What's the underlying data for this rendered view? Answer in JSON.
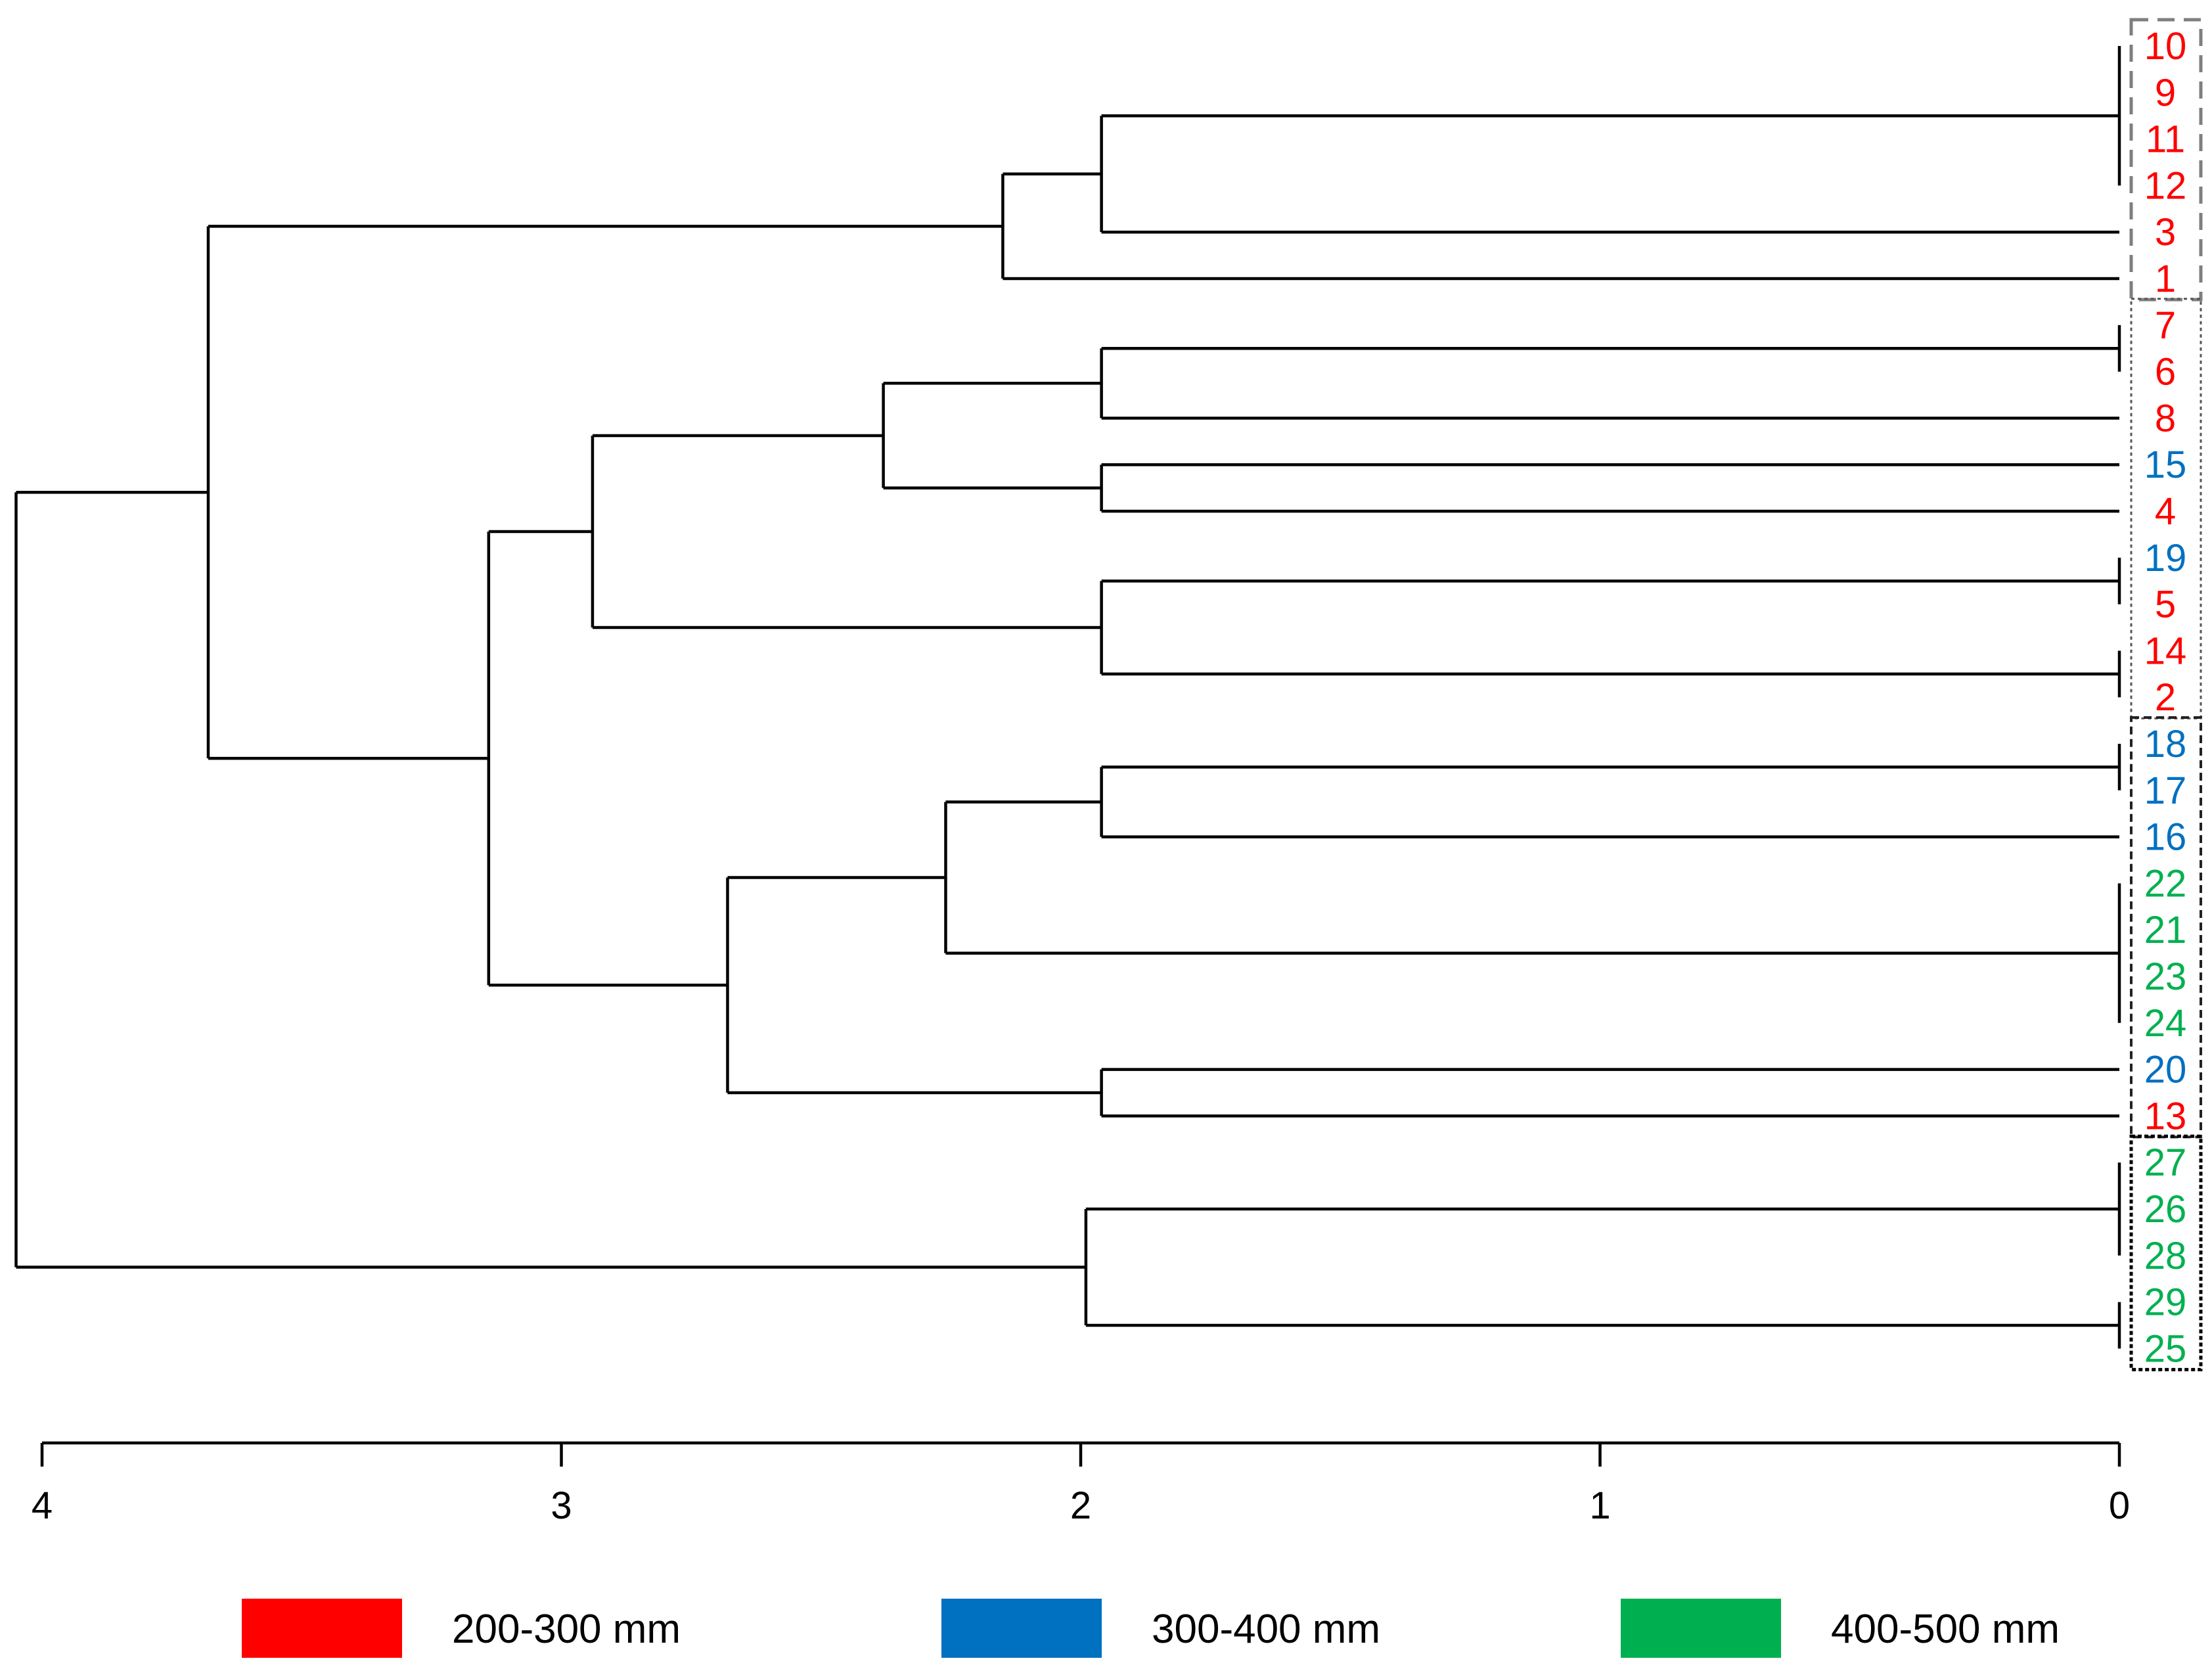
{
  "chart_data": {
    "type": "dendrogram",
    "title": "",
    "xlabel": "",
    "ylabel": "",
    "orientation": "right-to-left",
    "xlim": [
      4,
      0
    ],
    "x_ticks": [
      4,
      3,
      2,
      1,
      0
    ],
    "x_tick_labels": [
      "4",
      "3",
      "2",
      "1",
      "0"
    ],
    "leaf_order": [
      "10",
      "9",
      "11",
      "12",
      "3",
      "1",
      "7",
      "6",
      "8",
      "15",
      "4",
      "19",
      "5",
      "14",
      "2",
      "18",
      "17",
      "16",
      "22",
      "21",
      "23",
      "24",
      "20",
      "13",
      "27",
      "26",
      "28",
      "29",
      "25"
    ],
    "leaf_groups": {
      "10": "200-300 mm",
      "9": "200-300 mm",
      "11": "200-300 mm",
      "12": "200-300 mm",
      "3": "200-300 mm",
      "1": "200-300 mm",
      "7": "200-300 mm",
      "6": "200-300 mm",
      "8": "200-300 mm",
      "15": "300-400 mm",
      "4": "200-300 mm",
      "19": "300-400 mm",
      "5": "200-300 mm",
      "14": "200-300 mm",
      "2": "200-300 mm",
      "18": "300-400 mm",
      "17": "300-400 mm",
      "16": "300-400 mm",
      "22": "400-500 mm",
      "21": "400-500 mm",
      "23": "400-500 mm",
      "24": "400-500 mm",
      "20": "300-400 mm",
      "13": "200-300 mm",
      "27": "400-500 mm",
      "26": "400-500 mm",
      "28": "400-500 mm",
      "29": "400-500 mm",
      "25": "400-500 mm"
    },
    "merges": [
      {
        "id": "A",
        "children": [
          "10",
          "9",
          "11",
          "12"
        ],
        "height": 0
      },
      {
        "id": "B",
        "children": [
          "A",
          "3"
        ],
        "height": 1.96
      },
      {
        "id": "C",
        "children": [
          "B",
          "1"
        ],
        "height": 2.15
      },
      {
        "id": "D",
        "children": [
          "7",
          "6"
        ],
        "height": 0
      },
      {
        "id": "E",
        "children": [
          "D",
          "8"
        ],
        "height": 1.96
      },
      {
        "id": "F",
        "children": [
          "15",
          "4"
        ],
        "height": 1.96
      },
      {
        "id": "G",
        "children": [
          "E",
          "F"
        ],
        "height": 2.38
      },
      {
        "id": "H",
        "children": [
          "19",
          "5"
        ],
        "height": 0
      },
      {
        "id": "I",
        "children": [
          "14",
          "2"
        ],
        "height": 0
      },
      {
        "id": "J",
        "children": [
          "H",
          "I"
        ],
        "height": 1.96
      },
      {
        "id": "K",
        "children": [
          "G",
          "J"
        ],
        "height": 2.94
      },
      {
        "id": "L",
        "children": [
          "18",
          "17"
        ],
        "height": 0
      },
      {
        "id": "M",
        "children": [
          "L",
          "16"
        ],
        "height": 1.96
      },
      {
        "id": "N",
        "children": [
          "22",
          "21",
          "23",
          "24"
        ],
        "height": 0
      },
      {
        "id": "O",
        "children": [
          "M",
          "N"
        ],
        "height": 2.26
      },
      {
        "id": "P",
        "children": [
          "20",
          "13"
        ],
        "height": 1.96
      },
      {
        "id": "Q",
        "children": [
          "O",
          "P"
        ],
        "height": 2.68
      },
      {
        "id": "R",
        "children": [
          "K",
          "Q"
        ],
        "height": 3.14
      },
      {
        "id": "S",
        "children": [
          "C",
          "R"
        ],
        "height": 3.68
      },
      {
        "id": "T",
        "children": [
          "27",
          "26",
          "28"
        ],
        "height": 0
      },
      {
        "id": "U",
        "children": [
          "29",
          "25"
        ],
        "height": 0
      },
      {
        "id": "V",
        "children": [
          "T",
          "U"
        ],
        "height": 1.99
      },
      {
        "id": "W",
        "children": [
          "S",
          "V"
        ],
        "height": 4.05
      }
    ],
    "cluster_boxes": [
      {
        "leaves": [
          "10",
          "9",
          "11",
          "12",
          "3",
          "1"
        ],
        "style": "long-dash"
      },
      {
        "leaves": [
          "7",
          "6",
          "8",
          "15",
          "4",
          "19",
          "5",
          "14",
          "2"
        ],
        "style": "dotted"
      },
      {
        "leaves": [
          "18",
          "17",
          "16",
          "22",
          "21",
          "23",
          "24",
          "20",
          "13"
        ],
        "style": "dashed"
      },
      {
        "leaves": [
          "27",
          "26",
          "28",
          "29",
          "25"
        ],
        "style": "dense-dotted"
      }
    ],
    "legend": [
      {
        "label": "200-300 mm",
        "color": "#ff0000"
      },
      {
        "label": "300-400 mm",
        "color": "#0070c0"
      },
      {
        "label": "400-500 mm",
        "color": "#00b050"
      }
    ],
    "legend_position": "bottom"
  }
}
